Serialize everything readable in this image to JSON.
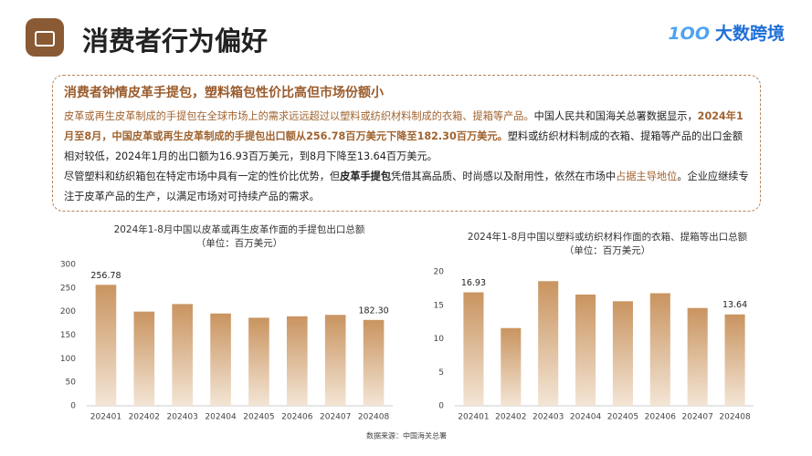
{
  "header": {
    "title": "消费者行为偏好",
    "logo": "大数跨境"
  },
  "summary": {
    "title": "消费者钟情皮革手提包，塑料箱包性价比高但市场份额小",
    "paragraphs": [
      [
        {
          "text": "皮革或再生皮革制成的手提包在全球市场上的需求远远超过以塑料或纺织材料制成的衣箱、提箱等产品。",
          "style": "accent"
        },
        {
          "text": "中国人民共和国海关总署数据显示，"
        },
        {
          "text": "2024年1月至8月，中国皮革或再生皮革制成的手提包出口额从256.78百万美元下降至182.30百万美元。",
          "style": "accent-strong"
        },
        {
          "text": "塑料或纺织材料制成的衣箱、提箱等产品的出口金额相对较低，2024年1月的出口额为16.93百万美元，到8月下降至13.64百万美元。"
        }
      ],
      [
        {
          "text": "尽管塑料和纺织箱包在特定市场中具有一定的性价比优势，但"
        },
        {
          "text": "皮革手提包",
          "style": "strong"
        },
        {
          "text": "凭借其高品质、时尚感以及耐用性，依然在市场中"
        },
        {
          "text": "占据主导地位",
          "style": "accent"
        },
        {
          "text": "。企业应继续专注于皮革产品的生产，以满足市场对可持续产品的需求。"
        }
      ]
    ]
  },
  "chart_data": [
    {
      "type": "bar",
      "title": "2024年1-8月中国以皮革或再生皮革作面的手提包出口总额",
      "subtitle": "（单位：百万美元）",
      "categories": [
        "202401",
        "202402",
        "202403",
        "202404",
        "202405",
        "202406",
        "202407",
        "202408"
      ],
      "values": [
        256.78,
        200,
        216,
        196,
        187,
        190,
        193,
        182.3
      ],
      "value_labels": [
        "256.78",
        null,
        null,
        null,
        null,
        null,
        null,
        "182.30"
      ],
      "color": "#c99460",
      "ylim": [
        0,
        300
      ],
      "yticks": [
        0,
        50,
        100,
        150,
        200,
        250,
        300
      ],
      "grid": false
    },
    {
      "type": "bar",
      "title": "2024年1-8月中国以塑料或纺织材料作面的衣箱、提箱等出口总额",
      "subtitle": "（单位：百万美元）",
      "categories": [
        "202401",
        "202402",
        "202403",
        "202404",
        "202405",
        "202406",
        "202407",
        "202408"
      ],
      "values": [
        16.93,
        11.6,
        18.6,
        16.6,
        15.6,
        16.8,
        14.6,
        13.64
      ],
      "value_labels": [
        "16.93",
        null,
        null,
        null,
        null,
        null,
        null,
        "13.64"
      ],
      "color": "#c99460",
      "ylim": [
        0,
        20
      ],
      "yticks": [
        0,
        5,
        10,
        15,
        20
      ],
      "grid": false
    }
  ],
  "source": "数据来源：中国海关总署"
}
